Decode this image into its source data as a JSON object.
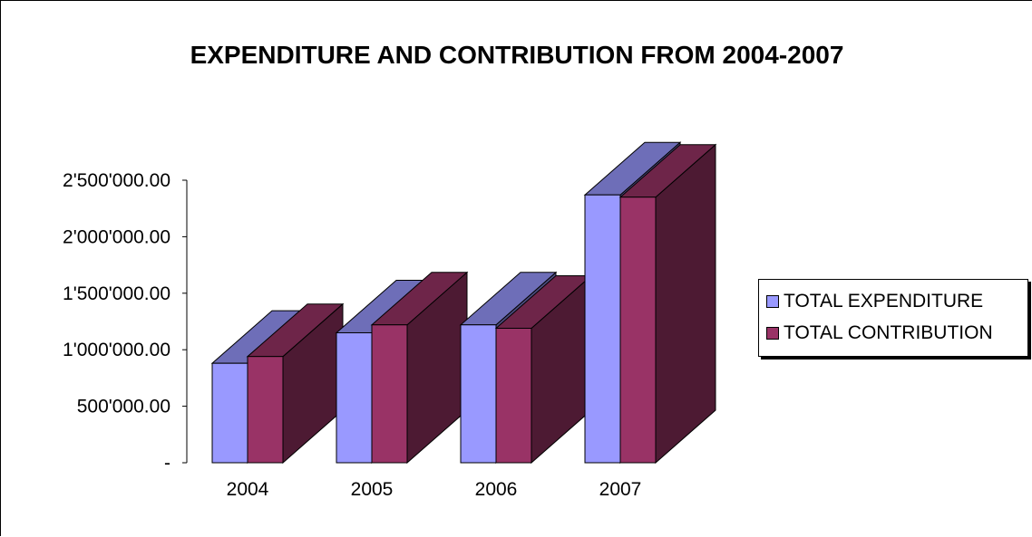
{
  "chart_data": {
    "type": "bar",
    "title": "EXPENDITURE AND CONTRIBUTION FROM 2004-2007",
    "categories": [
      "2004",
      "2005",
      "2006",
      "2007"
    ],
    "series": [
      {
        "name": "TOTAL EXPENDITURE",
        "values": [
          880000,
          1150000,
          1220000,
          2370000
        ],
        "color": "#9999ff"
      },
      {
        "name": "TOTAL CONTRIBUTION",
        "values": [
          940000,
          1220000,
          1190000,
          2350000
        ],
        "color": "#993366"
      }
    ],
    "yticks": [
      {
        "value": 0,
        "label": "-"
      },
      {
        "value": 500000,
        "label": "500'000.00"
      },
      {
        "value": 1000000,
        "label": "1'000'000.00"
      },
      {
        "value": 1500000,
        "label": "1'500'000.00"
      },
      {
        "value": 2000000,
        "label": "2'000'000.00"
      },
      {
        "value": 2500000,
        "label": "2'500'000.00"
      }
    ],
    "ylim": [
      0,
      2500000
    ],
    "style": "3d-clustered-column",
    "grid": false,
    "legend_position": "right",
    "xlabel": "",
    "ylabel": ""
  }
}
